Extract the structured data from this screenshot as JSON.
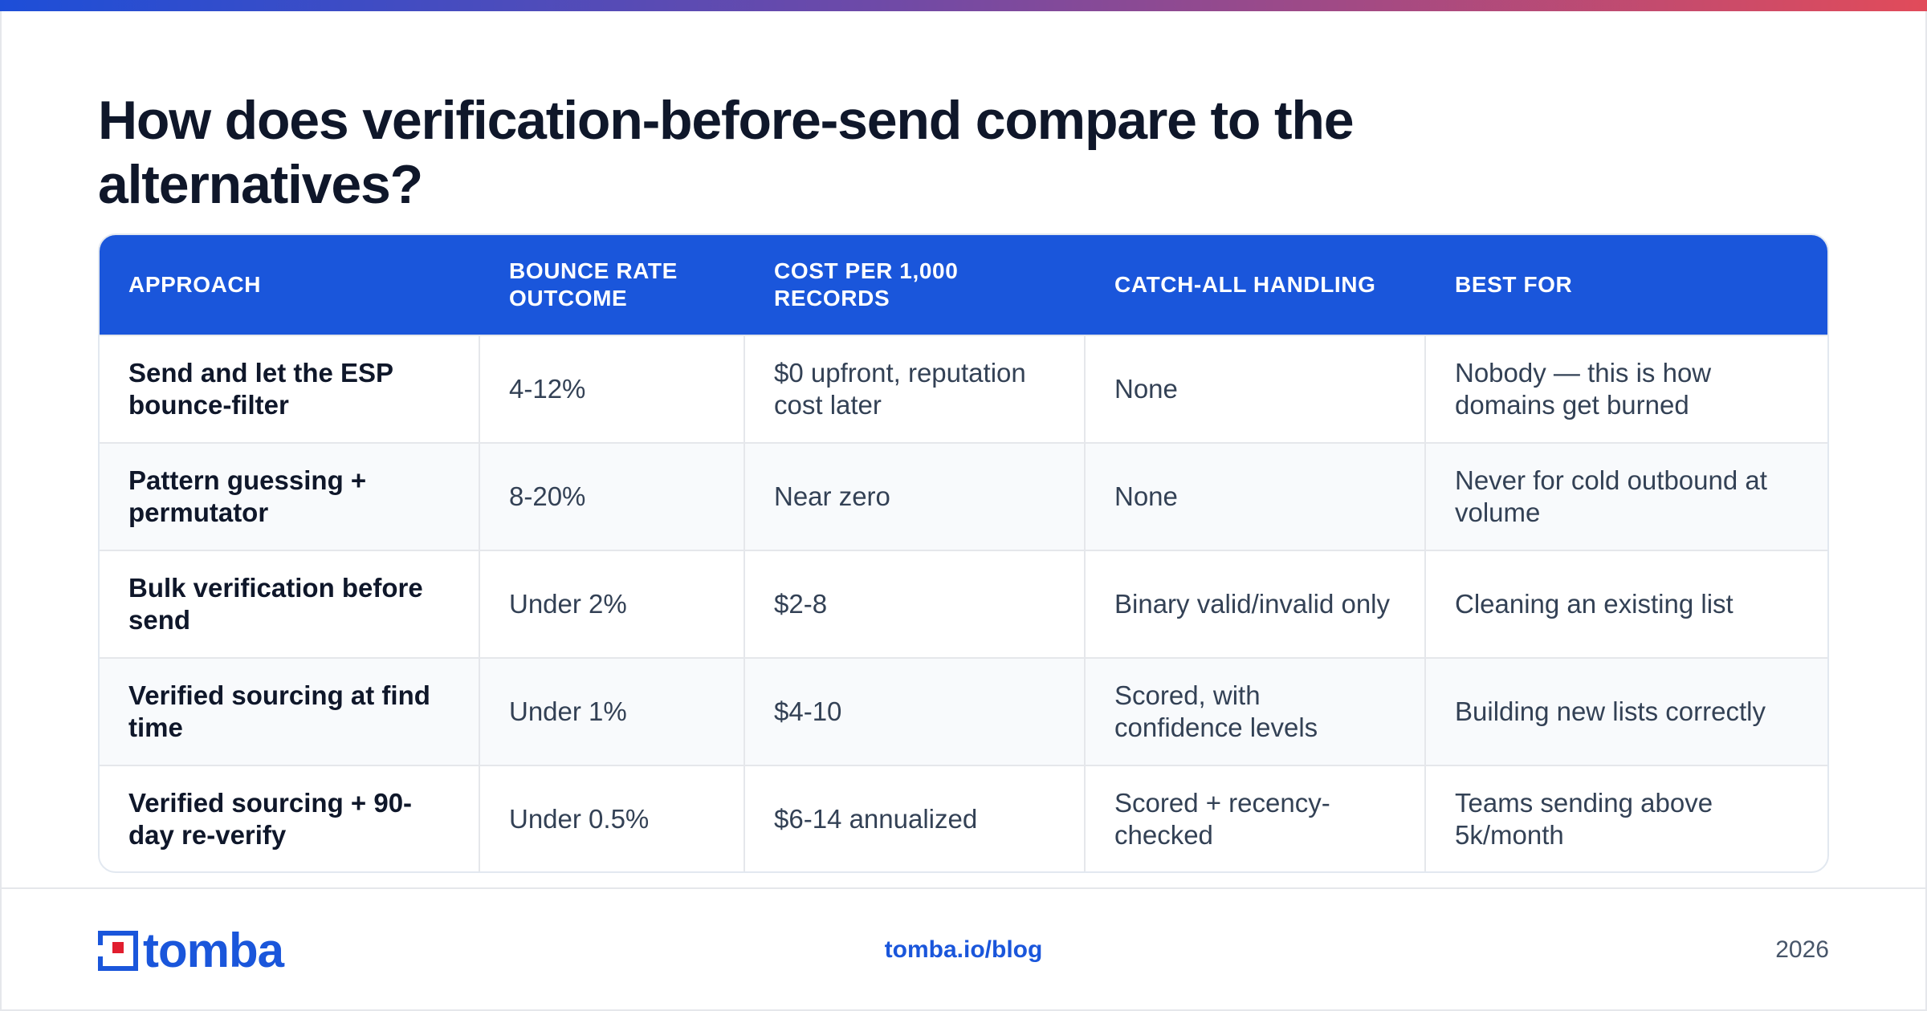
{
  "title": "How does verification-before-send compare to the alternatives?",
  "table": {
    "headers": [
      "APPROACH",
      "BOUNCE RATE OUTCOME",
      "COST PER 1,000 RECORDS",
      "CATCH-ALL HANDLING",
      "BEST FOR"
    ],
    "rows": [
      [
        "Send and let the ESP bounce-filter",
        "4-12%",
        "$0 upfront, reputation cost later",
        "None",
        "Nobody — this is how domains get burned"
      ],
      [
        "Pattern guessing + permutator",
        "8-20%",
        "Near zero",
        "None",
        "Never for cold outbound at volume"
      ],
      [
        "Bulk verification before send",
        "Under 2%",
        "$2-8",
        "Binary valid/invalid only",
        "Cleaning an existing list"
      ],
      [
        "Verified sourcing at find time",
        "Under 1%",
        "$4-10",
        "Scored, with confidence levels",
        "Building new lists correctly"
      ],
      [
        "Verified sourcing + 90-day re-verify",
        "Under 0.5%",
        "$6-14 annualized",
        "Scored + recency-checked",
        "Teams sending above 5k/month"
      ]
    ]
  },
  "footer": {
    "logo_text": "tomba",
    "link": "tomba.io/blog",
    "year": "2026"
  },
  "colors": {
    "accent": "#1a56db",
    "logo_red": "#e11d2e",
    "gradient_start": "#1d4ed8",
    "gradient_end": "#e14b5a"
  },
  "icons": {
    "logo": "tomba-logo-mark-icon"
  }
}
